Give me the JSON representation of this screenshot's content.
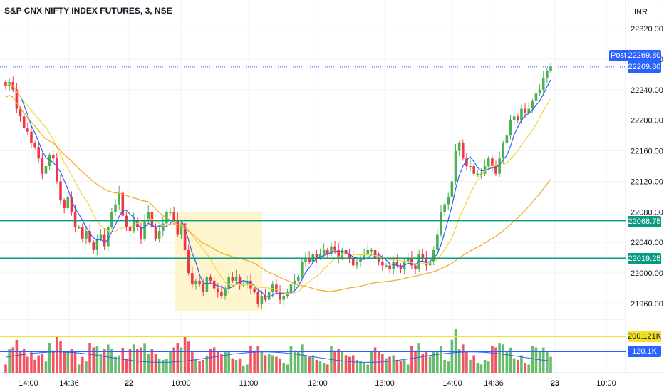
{
  "header": {
    "title": "S&P CNX NIFTY INDEX FUTURES, 3, NSE",
    "currency": "INR"
  },
  "price_tags": {
    "post_label": "Post",
    "post_value": "22269.80",
    "last_price": "22269.80",
    "level_upper": "22068.75",
    "level_lower": "22019.25",
    "volume_upper": "200.121K",
    "volume_lower": "120.1K"
  },
  "colors": {
    "up": "#4caf50",
    "down": "#f23645",
    "level_line": "#089981",
    "highlight_zone": "#fff3c4",
    "ma_blue": "#2962ff",
    "ma_yellow": "#f5d33c",
    "ma_orange": "#f5a623",
    "volume_yellow": "#f3e12a",
    "volume_blue": "#2962ff",
    "last_price_tag": "#2962ff"
  },
  "chart_data": {
    "type": "candlestick",
    "title": "S&P CNX NIFTY INDEX FUTURES, 3, NSE",
    "y_ticks": [
      22320,
      22280,
      22240,
      22200,
      22160,
      22120,
      22080,
      22040,
      22000,
      21960
    ],
    "y_tick_labels": [
      "22320.00",
      "22280.00",
      "22240.00",
      "22200.00",
      "22160.00",
      "22120.00",
      "22080.00",
      "22040.00",
      "22000.00",
      "21960.00"
    ],
    "x_tick_labels": [
      "14:00",
      "14:36",
      "22",
      "10:00",
      "11:00",
      "12:00",
      "13:00",
      "14:00",
      "14:36",
      "23",
      "10:00"
    ],
    "horizontal_levels": [
      22068.75,
      22019.25
    ],
    "last_price": 22269.8,
    "volume_levels": [
      200121,
      120100
    ],
    "closes": [
      22245,
      22250,
      22240,
      22215,
      22205,
      22190,
      22185,
      22170,
      22165,
      22150,
      22130,
      22140,
      22155,
      22150,
      22120,
      22095,
      22085,
      22100,
      22080,
      22060,
      22060,
      22045,
      22055,
      22040,
      22030,
      22045,
      22050,
      22035,
      22060,
      22080,
      22090,
      22105,
      22075,
      22060,
      22055,
      22070,
      22060,
      22045,
      22070,
      22080,
      22060,
      22045,
      22055,
      22065,
      22080,
      22080,
      22070,
      22050,
      22065,
      22030,
      22000,
      21985,
      21990,
      21985,
      21975,
      21995,
      21990,
      21980,
      21975,
      21970,
      21980,
      21995,
      21990,
      21995,
      21985,
      21985,
      21990,
      21980,
      21975,
      21960,
      21970,
      21965,
      21975,
      21985,
      21975,
      21965,
      21970,
      21975,
      21985,
      21990,
      21995,
      22015,
      22020,
      22015,
      22025,
      22020,
      22025,
      22030,
      22025,
      22035,
      22030,
      22020,
      22030,
      22025,
      22020,
      22010,
      22015,
      22020,
      22025,
      22030,
      22030,
      22020,
      22015,
      22010,
      22010,
      22005,
      22015,
      22010,
      22005,
      22015,
      22020,
      22010,
      22005,
      22025,
      22020,
      22010,
      22015,
      22030,
      22050,
      22080,
      22090,
      22100,
      22120,
      22160,
      22170,
      22150,
      22140,
      22140,
      22130,
      22130,
      22130,
      22140,
      22150,
      22140,
      22130,
      22150,
      22170,
      22180,
      22200,
      22205,
      22200,
      22215,
      22210,
      22215,
      22225,
      22235,
      22240,
      22255,
      22265,
      22269.8
    ],
    "volume_max": 300000
  }
}
